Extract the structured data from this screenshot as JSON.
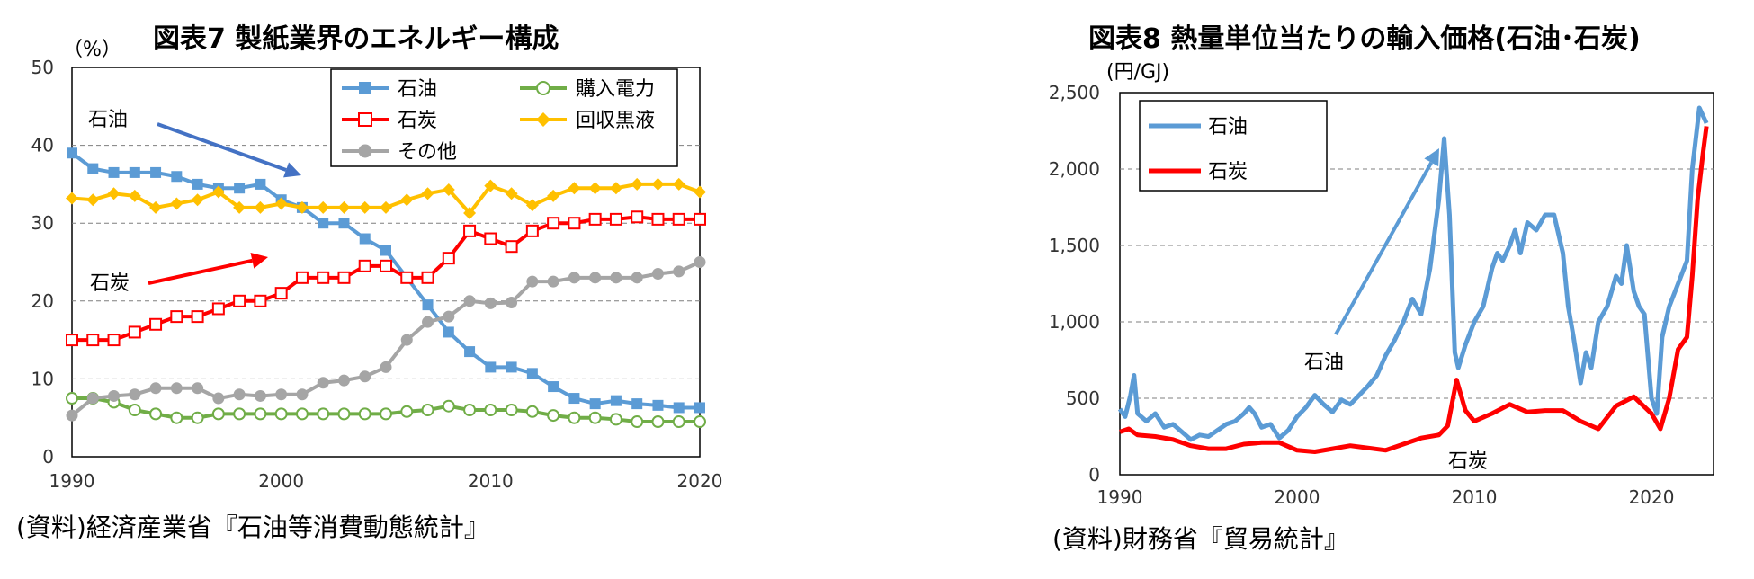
{
  "charts": [
    {
      "title": "図表7  製紙業界のエネルギー構成",
      "unit": "（%）",
      "source": "(資料)経済産業省『石油等消費動態統計』",
      "legend": [
        {
          "label": "石油",
          "color": "#5B9BD5",
          "marker": "square"
        },
        {
          "label": "購入電力",
          "color": "#70AD47",
          "marker": "circle-open"
        },
        {
          "label": "石炭",
          "color": "#FF0000",
          "marker": "square-open"
        },
        {
          "label": "回収黒液",
          "color": "#FFC000",
          "marker": "diamond"
        },
        {
          "label": "その他",
          "color": "#A5A5A5",
          "marker": "circle"
        }
      ],
      "annotations": {
        "oil": "石油",
        "coal": "石炭"
      }
    },
    {
      "title": "図表8  熱量単位当たりの輸入価格(石油･石炭)",
      "unit": "(円/GJ)",
      "source": "(資料)財務省『貿易統計』",
      "legend": [
        {
          "label": "石油",
          "color": "#5B9BD5"
        },
        {
          "label": "石炭",
          "color": "#FF0000"
        }
      ],
      "annotations": {
        "oil": "石油",
        "coal": "石炭"
      }
    }
  ],
  "chart_data": [
    {
      "type": "line",
      "title": "図表7  製紙業界のエネルギー構成",
      "ylabel": "（%）",
      "x": [
        1990,
        1991,
        1992,
        1993,
        1994,
        1995,
        1996,
        1997,
        1998,
        1999,
        2000,
        2001,
        2002,
        2003,
        2004,
        2005,
        2006,
        2007,
        2008,
        2009,
        2010,
        2011,
        2012,
        2013,
        2014,
        2015,
        2016,
        2017,
        2018,
        2019,
        2020
      ],
      "xticks": [
        "1990",
        "2000",
        "2010",
        "2020"
      ],
      "yticks": [
        "0",
        "10",
        "20",
        "30",
        "40",
        "50"
      ],
      "xlim": [
        1990,
        2020
      ],
      "ylim": [
        0,
        50
      ],
      "grid": "horizontal dashed",
      "legend_position": "top-right",
      "series": [
        {
          "name": "石油",
          "color": "#5B9BD5",
          "marker": "square",
          "values": [
            39,
            37,
            36.5,
            36.5,
            36.5,
            36,
            35,
            34.5,
            34.5,
            35,
            33,
            32,
            30,
            30,
            28,
            26.5,
            23,
            19.5,
            16,
            13.5,
            11.5,
            11.5,
            10.7,
            9,
            7.5,
            6.8,
            7.2,
            6.8,
            6.6,
            6.3,
            6.3
          ]
        },
        {
          "name": "購入電力",
          "color": "#70AD47",
          "marker": "circle-open",
          "values": [
            7.5,
            7.5,
            7,
            6,
            5.5,
            5,
            5,
            5.5,
            5.5,
            5.5,
            5.5,
            5.5,
            5.5,
            5.5,
            5.5,
            5.5,
            5.8,
            6,
            6.5,
            6,
            6,
            6,
            5.8,
            5.3,
            5,
            5,
            4.8,
            4.5,
            4.5,
            4.5,
            4.5
          ]
        },
        {
          "name": "石炭",
          "color": "#FF0000",
          "marker": "square-open",
          "values": [
            15,
            15,
            15,
            16,
            17,
            18,
            18,
            19,
            20,
            20,
            21,
            23,
            23,
            23,
            24.5,
            24.5,
            23,
            23,
            25.5,
            29,
            28,
            27,
            29,
            30,
            30,
            30.5,
            30.5,
            30.8,
            30.5,
            30.5,
            30.5
          ]
        },
        {
          "name": "回収黒液",
          "color": "#FFC000",
          "marker": "diamond",
          "values": [
            33.2,
            33,
            33.8,
            33.5,
            32,
            32.5,
            33,
            34,
            32,
            32,
            32.5,
            32,
            32,
            32,
            32,
            32,
            33,
            33.8,
            34.3,
            31.3,
            34.8,
            33.8,
            32.3,
            33.5,
            34.5,
            34.5,
            34.5,
            35,
            35,
            35,
            34
          ]
        },
        {
          "name": "その他",
          "color": "#A5A5A5",
          "marker": "circle",
          "values": [
            5.3,
            7.5,
            7.8,
            8,
            8.8,
            8.8,
            8.8,
            7.5,
            8,
            7.8,
            8,
            8,
            9.5,
            9.8,
            10.3,
            11.5,
            15,
            17.3,
            18,
            20,
            19.7,
            19.8,
            22.5,
            22.5,
            23,
            23,
            23,
            23,
            23.5,
            23.8,
            25
          ]
        }
      ]
    },
    {
      "type": "line",
      "title": "図表8  熱量単位当たりの輸入価格(石油･石炭)",
      "ylabel": "(円/GJ)",
      "xticks": [
        "1990",
        "2000",
        "2010",
        "2020"
      ],
      "yticks": [
        "0",
        "500",
        "1,000",
        "1,500",
        "2,000",
        "2,500"
      ],
      "xlim": [
        1990,
        2023.5
      ],
      "ylim": [
        0,
        2500
      ],
      "grid": "horizontal dashed",
      "legend_position": "top-left",
      "series": [
        {
          "name": "石油",
          "color": "#5B9BD5",
          "x": [
            1990,
            1990.3,
            1990.6,
            1990.8,
            1991,
            1991.5,
            1992,
            1992.5,
            1993,
            1993.5,
            1994,
            1994.5,
            1995,
            1995.5,
            1996,
            1996.5,
            1997,
            1997.3,
            1997.6,
            1998,
            1998.5,
            1999,
            1999.5,
            2000,
            2000.5,
            2001,
            2001.5,
            2002,
            2002.5,
            2003,
            2003.5,
            2004,
            2004.5,
            2005,
            2005.5,
            2006,
            2006.5,
            2007,
            2007.5,
            2008,
            2008.3,
            2008.6,
            2008.9,
            2009.1,
            2009.5,
            2010,
            2010.5,
            2011,
            2011.3,
            2011.6,
            2012,
            2012.3,
            2012.6,
            2013,
            2013.5,
            2014,
            2014.5,
            2015,
            2015.3,
            2015.6,
            2016,
            2016.3,
            2016.6,
            2017,
            2017.5,
            2018,
            2018.3,
            2018.6,
            2019,
            2019.3,
            2019.6,
            2020,
            2020.3,
            2020.6,
            2021,
            2021.5,
            2022,
            2022.3,
            2022.5,
            2022.7,
            2022.9,
            2023.1
          ],
          "values": [
            430,
            380,
            520,
            650,
            400,
            350,
            400,
            310,
            330,
            280,
            230,
            260,
            250,
            290,
            330,
            350,
            400,
            440,
            400,
            310,
            330,
            240,
            290,
            380,
            440,
            520,
            460,
            410,
            490,
            460,
            520,
            580,
            650,
            780,
            880,
            1000,
            1150,
            1050,
            1350,
            1800,
            2200,
            1700,
            800,
            700,
            850,
            1000,
            1100,
            1350,
            1450,
            1400,
            1500,
            1600,
            1450,
            1650,
            1600,
            1700,
            1700,
            1450,
            1100,
            900,
            600,
            800,
            700,
            1000,
            1100,
            1300,
            1250,
            1500,
            1200,
            1100,
            1050,
            500,
            400,
            900,
            1100,
            1250,
            1400,
            2000,
            2200,
            2400,
            2350,
            2300
          ]
        },
        {
          "name": "石炭",
          "color": "#FF0000",
          "x": [
            1990,
            1990.5,
            1991,
            1992,
            1993,
            1994,
            1995,
            1996,
            1997,
            1998,
            1999,
            2000,
            2001,
            2002,
            2003,
            2004,
            2005,
            2006,
            2007,
            2008,
            2008.5,
            2009,
            2009.5,
            2010,
            2011,
            2012,
            2013,
            2014,
            2015,
            2016,
            2017,
            2018,
            2019,
            2020,
            2020.5,
            2021,
            2021.5,
            2022,
            2022.3,
            2022.6,
            2022.9,
            2023.1
          ],
          "values": [
            280,
            300,
            260,
            250,
            230,
            190,
            170,
            170,
            200,
            210,
            210,
            160,
            150,
            170,
            190,
            175,
            160,
            200,
            240,
            260,
            320,
            620,
            420,
            350,
            400,
            460,
            410,
            420,
            420,
            350,
            300,
            450,
            510,
            400,
            300,
            500,
            820,
            900,
            1300,
            1800,
            2100,
            2280
          ]
        }
      ]
    }
  ]
}
